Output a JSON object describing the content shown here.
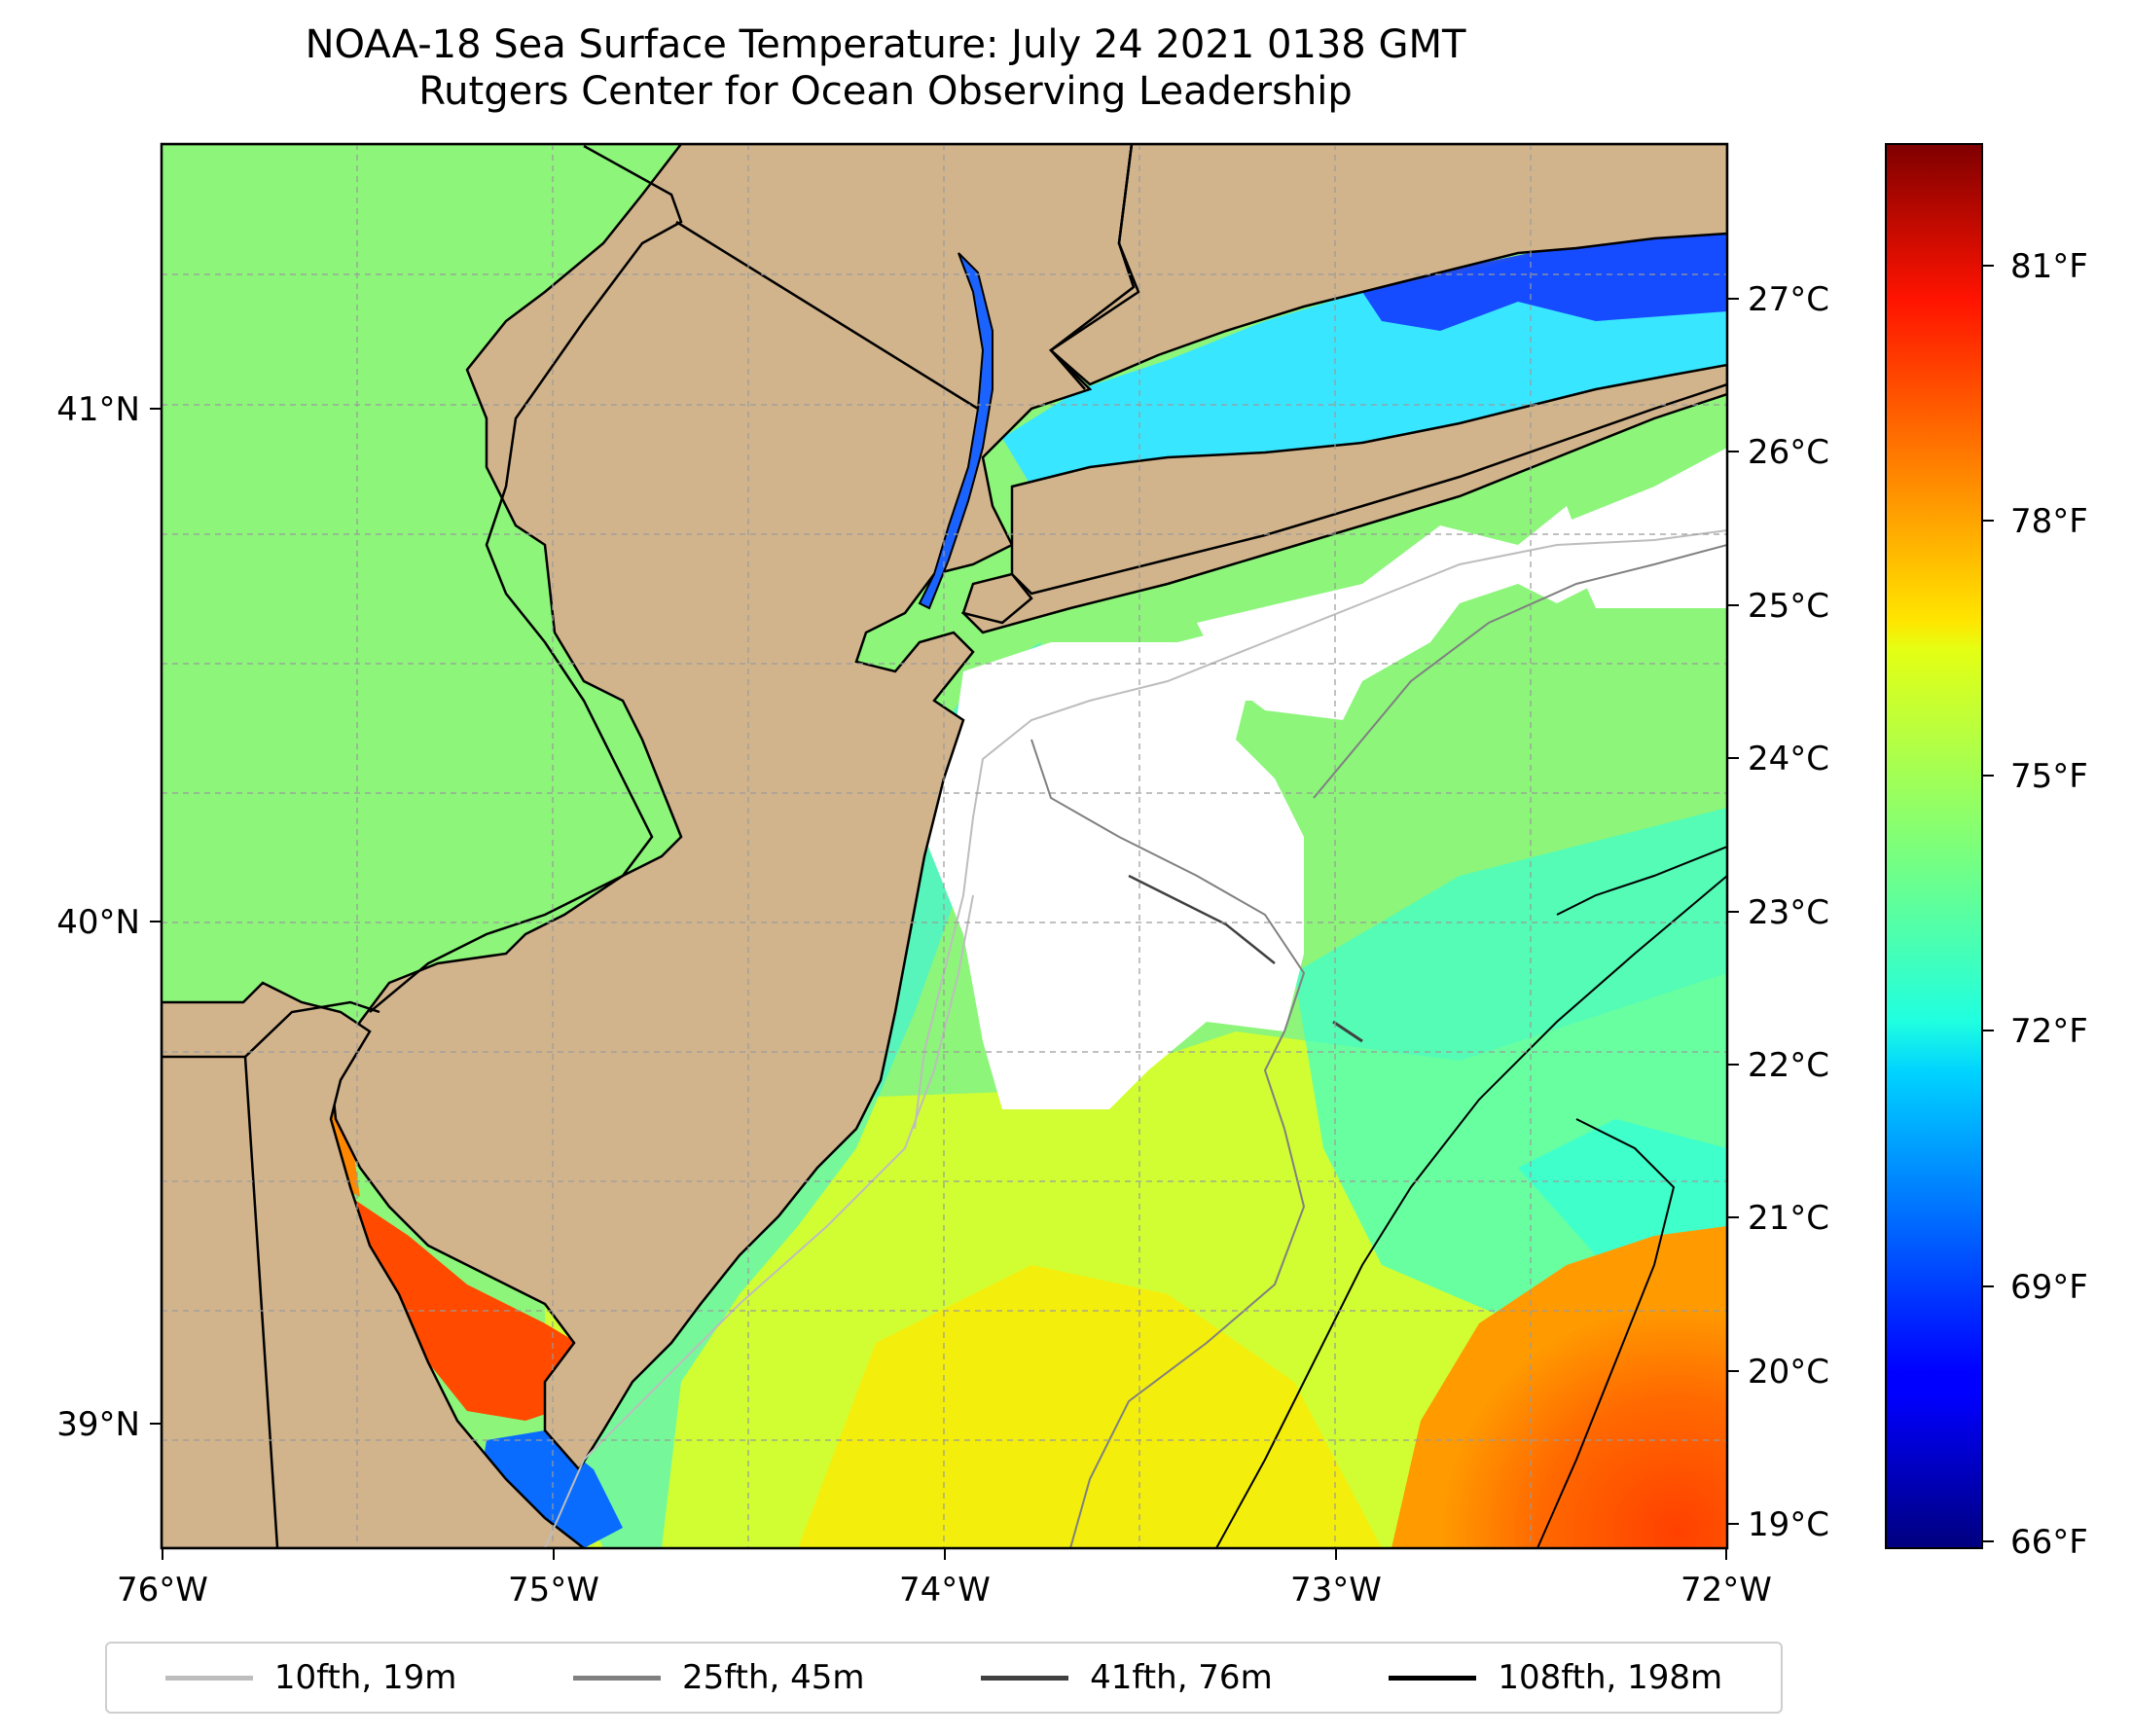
{
  "title": "NOAA-18 Sea Surface Temperature: July 24 2021 0138 GMT",
  "subtitle": "Rutgers Center for Ocean Observing Leadership",
  "map": {
    "lon_ticks": [
      "76°W",
      "75°W",
      "74°W",
      "73°W",
      "72°W"
    ],
    "lat_ticks": [
      "41°N",
      "40°N",
      "39°N"
    ],
    "land_color": "#d2b48c",
    "cloud_color": "#ffffff"
  },
  "colorbar": {
    "colormap": "jet",
    "celsius_ticks": [
      "27°C",
      "26°C",
      "25°C",
      "24°C",
      "23°C",
      "22°C",
      "21°C",
      "20°C",
      "19°C"
    ],
    "fahrenheit_ticks": [
      "81°F",
      "78°F",
      "75°F",
      "72°F",
      "69°F",
      "66°F"
    ],
    "min_f": 66,
    "max_f": 82
  },
  "legend": [
    {
      "label": "10fth, 19m",
      "color": "#bdbdbd"
    },
    {
      "label": "25fth, 45m",
      "color": "#808080"
    },
    {
      "label": "41fth, 76m",
      "color": "#404040"
    },
    {
      "label": "108fth, 198m",
      "color": "#000000"
    }
  ]
}
